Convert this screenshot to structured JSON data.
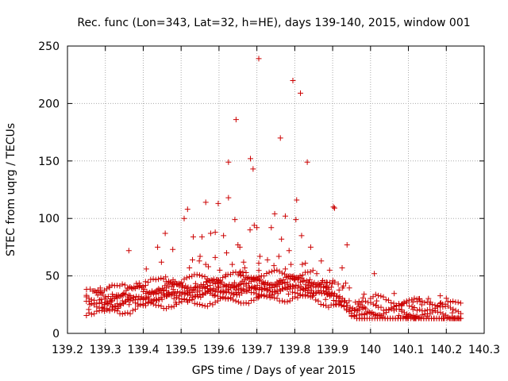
{
  "chart_data": {
    "type": "scatter",
    "title": "Rec. func (Lon=343, Lat=32, h=HE), days 139-140, 2015, window 001",
    "xlabel": "GPS time / Days of year 2015",
    "ylabel": "STEC from uqrg / TECUs",
    "xlim": [
      139.2,
      140.3
    ],
    "ylim": [
      0,
      250
    ],
    "xticks": [
      "139.2",
      "139.3",
      "139.4",
      "139.5",
      "139.6",
      "139.7",
      "139.8",
      "139.9",
      "140",
      "140.1",
      "140.2",
      "140.3"
    ],
    "xtick_values": [
      139.2,
      139.3,
      139.4,
      139.5,
      139.6,
      139.7,
      139.8,
      139.9,
      140.0,
      140.1,
      140.2,
      140.3
    ],
    "yticks": [
      "0",
      "50",
      "100",
      "150",
      "200",
      "250"
    ],
    "ytick_values": [
      0,
      50,
      100,
      150,
      200,
      250
    ],
    "grid": true,
    "marker": "+",
    "color": "#cc0000",
    "series": [
      {
        "x": [
          139.705,
          139.795,
          139.815,
          139.645,
          139.762,
          139.625,
          139.833,
          139.69,
          139.683,
          139.805,
          139.508,
          139.517,
          139.565,
          139.598,
          139.625,
          139.642,
          139.693,
          139.747,
          139.775,
          139.803,
          139.902,
          139.905,
          139.59,
          139.532,
          139.555,
          139.578,
          139.65,
          139.612,
          139.682,
          139.7,
          139.738,
          139.765,
          139.785,
          139.818,
          139.842,
          139.458,
          139.438,
          139.478,
          139.938,
          139.362,
          139.53,
          139.55,
          139.565,
          139.59,
          139.62,
          139.655,
          139.665,
          139.708,
          139.728,
          139.758,
          139.79,
          139.828,
          139.87,
          139.408,
          139.448,
          139.522,
          139.548,
          139.572,
          139.602,
          139.635,
          139.668,
          139.705,
          139.745,
          139.775,
          139.82,
          139.858,
          139.892,
          139.925,
          140.01
        ],
        "y": [
          239,
          220,
          209,
          186,
          170,
          149,
          149,
          143,
          152,
          116,
          100,
          108,
          114,
          113,
          118,
          99,
          94,
          104,
          102,
          99,
          110,
          109,
          88,
          84,
          84,
          87,
          77,
          85,
          90,
          92,
          92,
          82,
          72,
          85,
          75,
          87,
          75,
          73,
          77,
          72,
          64,
          67,
          60,
          66,
          70,
          75,
          62,
          67,
          64,
          67,
          60,
          61,
          63,
          56,
          62,
          57,
          63,
          58,
          55,
          60,
          57,
          61,
          59,
          56,
          60,
          52,
          55,
          57,
          52
        ]
      }
    ]
  }
}
